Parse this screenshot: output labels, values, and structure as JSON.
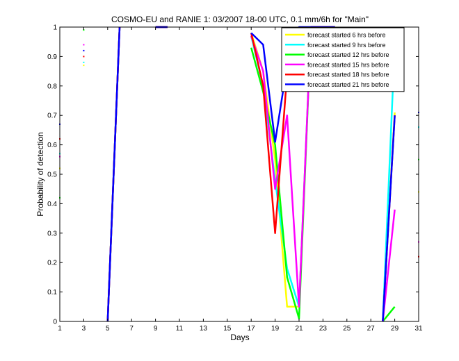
{
  "chart_data": {
    "type": "line",
    "title": "COSMO-EU and RANIE 1: 03/2007 18-00 UTC, 0.1 mm/6h for \"Main\"",
    "xlabel": "Days",
    "ylabel": "Probability of detection",
    "xlim": [
      1,
      31
    ],
    "ylim": [
      0,
      1
    ],
    "x_ticks": [
      1,
      3,
      5,
      7,
      9,
      11,
      13,
      15,
      17,
      19,
      21,
      23,
      25,
      27,
      29,
      31
    ],
    "y_ticks": [
      0,
      0.1,
      0.2,
      0.3,
      0.4,
      0.5,
      0.6,
      0.7,
      0.8,
      0.9,
      1
    ],
    "x_tick_labels": [
      "1",
      "3",
      "5",
      "7",
      "9",
      "11",
      "13",
      "15",
      "17",
      "19",
      "21",
      "23",
      "25",
      "27",
      "29",
      "31"
    ],
    "y_tick_labels": [
      "0",
      "0.1",
      "0.2",
      "0.3",
      "0.4",
      "0.5",
      "0.6",
      "0.7",
      "0.8",
      "0.9",
      "1"
    ],
    "grid": false,
    "legend_position": "top-right",
    "series": [
      {
        "name": "forecast started 6 hrs before",
        "color": "#ffff00",
        "segments": [
          [
            [
              5,
              0
            ],
            [
              6,
              1
            ]
          ],
          [
            [
              9,
              1
            ],
            [
              10,
              1
            ]
          ],
          [
            [
              17,
              0.98
            ],
            [
              18,
              0.85
            ],
            [
              19,
              0.55
            ],
            [
              20,
              0.05
            ],
            [
              21,
              0.05
            ],
            [
              22,
              1
            ],
            [
              24,
              1
            ]
          ],
          [
            [
              28,
              0
            ],
            [
              29,
              0.71
            ]
          ]
        ],
        "dots": [
          [
            1,
            0.52
          ],
          [
            3,
            0.87
          ],
          [
            31,
            0.44
          ]
        ]
      },
      {
        "name": "forecast started 9 hrs before",
        "color": "#00ffff",
        "segments": [
          [
            [
              5,
              0
            ],
            [
              6,
              1
            ]
          ],
          [
            [
              9,
              1
            ],
            [
              10,
              1
            ]
          ],
          [
            [
              17,
              0.97
            ],
            [
              18,
              0.8
            ],
            [
              19,
              0.48
            ],
            [
              20,
              0.18
            ],
            [
              21,
              0.05
            ],
            [
              22,
              1
            ],
            [
              24,
              1
            ]
          ],
          [
            [
              28,
              0
            ],
            [
              29,
              0.94
            ]
          ]
        ],
        "dots": [
          [
            1,
            0.57
          ],
          [
            3,
            0.88
          ],
          [
            31,
            0.66
          ]
        ]
      },
      {
        "name": "forecast started 12 hrs before",
        "color": "#00ff00",
        "segments": [
          [
            [
              5,
              0
            ],
            [
              6,
              1
            ]
          ],
          [
            [
              9,
              1
            ],
            [
              10,
              1
            ]
          ],
          [
            [
              17,
              0.93
            ],
            [
              18,
              0.78
            ],
            [
              19,
              0.6
            ],
            [
              20,
              0.15
            ],
            [
              21,
              0.01
            ],
            [
              22,
              1
            ],
            [
              24,
              1
            ]
          ],
          [
            [
              28,
              0
            ],
            [
              29,
              0.05
            ]
          ]
        ],
        "dots": [
          [
            1,
            0.42
          ],
          [
            3,
            0.99
          ],
          [
            31,
            0.55
          ]
        ]
      },
      {
        "name": "forecast started 15 hrs before",
        "color": "#ff00ff",
        "segments": [
          [
            [
              5,
              0
            ],
            [
              6,
              1
            ]
          ],
          [
            [
              9,
              1
            ],
            [
              10,
              1
            ]
          ],
          [
            [
              17,
              0.97
            ],
            [
              18,
              0.85
            ],
            [
              19,
              0.45
            ],
            [
              20,
              0.7
            ],
            [
              21,
              0.05
            ],
            [
              22,
              1
            ],
            [
              24,
              1
            ]
          ],
          [
            [
              28,
              0
            ],
            [
              29,
              0.38
            ]
          ]
        ],
        "dots": [
          [
            1,
            0.56
          ],
          [
            3,
            0.94
          ],
          [
            31,
            0.27
          ]
        ]
      },
      {
        "name": "forecast started 18 hrs before",
        "color": "#ff0000",
        "segments": [
          [
            [
              5,
              0
            ],
            [
              6,
              1
            ]
          ],
          [
            [
              9,
              1
            ],
            [
              10,
              1
            ]
          ],
          [
            [
              17,
              0.98
            ],
            [
              18,
              0.8
            ],
            [
              19,
              0.3
            ],
            [
              20,
              0.84
            ],
            [
              21,
              0.81
            ],
            [
              22,
              1
            ],
            [
              24,
              1
            ]
          ],
          [
            [
              28,
              0
            ],
            [
              29,
              0.7
            ]
          ]
        ],
        "dots": [
          [
            1,
            0.62
          ],
          [
            3,
            0.9
          ],
          [
            31,
            0.22
          ]
        ]
      },
      {
        "name": "forecast started 21 hrs before",
        "color": "#0000ff",
        "segments": [
          [
            [
              5,
              0
            ],
            [
              6,
              1
            ]
          ],
          [
            [
              9,
              1
            ],
            [
              10,
              1
            ]
          ],
          [
            [
              17,
              0.98
            ],
            [
              18,
              0.94
            ],
            [
              19,
              0.61
            ],
            [
              20,
              0.87
            ],
            [
              21,
              1
            ],
            [
              22,
              1
            ],
            [
              24,
              1
            ]
          ],
          [
            [
              28,
              0
            ],
            [
              29,
              0.7
            ]
          ]
        ],
        "dots": [
          [
            1,
            0.67
          ],
          [
            3,
            0.92
          ],
          [
            31,
            0.71
          ]
        ]
      }
    ]
  }
}
